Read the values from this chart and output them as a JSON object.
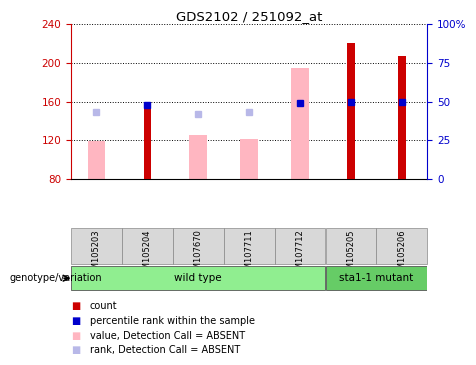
{
  "title": "GDS2102 / 251092_at",
  "samples": [
    "GSM105203",
    "GSM105204",
    "GSM107670",
    "GSM107711",
    "GSM107712",
    "GSM105205",
    "GSM105206"
  ],
  "groups": [
    {
      "name": "wild type",
      "indices": [
        0,
        1,
        2,
        3,
        4
      ],
      "color": "#90EE90"
    },
    {
      "name": "sta1-1 mutant",
      "indices": [
        5,
        6
      ],
      "color": "#66CC66"
    }
  ],
  "count_values": [
    null,
    160,
    null,
    null,
    null,
    220,
    207
  ],
  "count_color": "#CC0000",
  "percentile_values": [
    null,
    48,
    null,
    null,
    49,
    50,
    50
  ],
  "percentile_color": "#0000CC",
  "absent_value_values": [
    119,
    null,
    125,
    121,
    195,
    null,
    null
  ],
  "absent_value_color": "#FFB6C1",
  "absent_rank_values": [
    43,
    null,
    42,
    43,
    null,
    null,
    null
  ],
  "absent_rank_color": "#B8B8E8",
  "ylim_left": [
    80,
    240
  ],
  "yticks_left": [
    80,
    120,
    160,
    200,
    240
  ],
  "ylim_right": [
    0,
    100
  ],
  "yticks_right": [
    0,
    25,
    50,
    75,
    100
  ],
  "left_axis_color": "#CC0000",
  "right_axis_color": "#0000CC",
  "bg_color": "#D8D8D8",
  "plot_bg": "#FFFFFF",
  "legend_items": [
    {
      "label": "count",
      "color": "#CC0000"
    },
    {
      "label": "percentile rank within the sample",
      "color": "#0000CC"
    },
    {
      "label": "value, Detection Call = ABSENT",
      "color": "#FFB6C1"
    },
    {
      "label": "rank, Detection Call = ABSENT",
      "color": "#B8B8E8"
    }
  ],
  "genotype_label": "genotype/variation",
  "grid_color": "#000000"
}
